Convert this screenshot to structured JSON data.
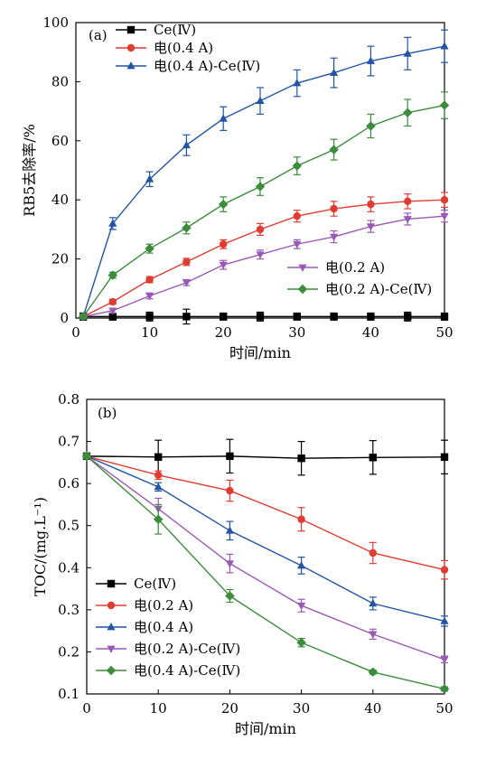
{
  "chart_data": [
    {
      "type": "line",
      "panel_label": "(a)",
      "xlabel": "时间/min",
      "ylabel": "RB5去除率/%",
      "xlim": [
        0,
        50
      ],
      "ylim": [
        0,
        100
      ],
      "xticks": [
        0,
        10,
        20,
        30,
        40,
        50
      ],
      "yticks": [
        0,
        20,
        40,
        60,
        80,
        100
      ],
      "grid": false,
      "legend": [
        {
          "position": "top-left",
          "series": [
            0,
            1,
            2
          ]
        },
        {
          "position": "bottom-right",
          "series": [
            3,
            4
          ]
        }
      ],
      "series": [
        {
          "name": "Ce(Ⅳ)",
          "color": "#000000",
          "marker": "square",
          "x": [
            1,
            5,
            10,
            15,
            20,
            25,
            30,
            35,
            40,
            45,
            50
          ],
          "y": [
            0.5,
            0.5,
            0.5,
            0.5,
            0.5,
            0.5,
            0.5,
            0.5,
            0.5,
            0.5,
            0.5
          ],
          "err": [
            1.2,
            1.2,
            1.5,
            2.5,
            1.2,
            1.5,
            1.2,
            1.2,
            1.2,
            1.5,
            1.2
          ]
        },
        {
          "name": "电(0.4 A)",
          "color": "#e03c31",
          "marker": "circle",
          "x": [
            1,
            5,
            10,
            15,
            20,
            25,
            30,
            35,
            40,
            45,
            50
          ],
          "y": [
            0.5,
            5.5,
            13,
            19,
            25,
            30,
            34.5,
            37,
            38.5,
            39.5,
            40
          ],
          "err": [
            0.8,
            0.8,
            1,
            1.2,
            1.5,
            2,
            2,
            2.5,
            2.5,
            2.5,
            2.5
          ]
        },
        {
          "name": "电(0.4 A)-Ce(Ⅳ)",
          "color": "#2255a4",
          "marker": "triangle-up",
          "x": [
            1,
            5,
            10,
            15,
            20,
            25,
            30,
            35,
            40,
            45,
            50
          ],
          "y": [
            0.5,
            32,
            47,
            58.5,
            67.5,
            73.5,
            79.5,
            83,
            87,
            89.5,
            92
          ],
          "err": [
            0.8,
            2,
            2.5,
            3.5,
            4,
            4.5,
            4.5,
            5,
            5,
            5.5,
            5.5
          ]
        },
        {
          "name": "电(0.2 A)",
          "color": "#9b59b6",
          "marker": "triangle-down",
          "x": [
            1,
            5,
            10,
            15,
            20,
            25,
            30,
            35,
            40,
            45,
            50
          ],
          "y": [
            0.5,
            2.5,
            7.5,
            12,
            18,
            21.5,
            25,
            27.5,
            31,
            33.5,
            34.5
          ],
          "err": [
            0.5,
            0.8,
            1,
            1,
            1.5,
            1.5,
            1.5,
            2,
            2,
            2,
            2
          ]
        },
        {
          "name": "电(0.2 A)-Ce(Ⅳ)",
          "color": "#3b8c3b",
          "marker": "diamond",
          "x": [
            1,
            5,
            10,
            15,
            20,
            25,
            30,
            35,
            40,
            45,
            50
          ],
          "y": [
            0.5,
            14.5,
            23.5,
            30.5,
            38.5,
            44.5,
            51.5,
            57,
            65,
            69.5,
            72
          ],
          "err": [
            0.8,
            1,
            1.5,
            2,
            2.5,
            3,
            3,
            3.5,
            4,
            4.5,
            4.5
          ]
        }
      ]
    },
    {
      "type": "line",
      "panel_label": "(b)",
      "xlabel": "时间/min",
      "ylabel": "TOC/(mg.L⁻¹)",
      "xlim": [
        0,
        50
      ],
      "ylim": [
        0.1,
        0.8
      ],
      "xticks": [
        0,
        10,
        20,
        30,
        40,
        50
      ],
      "yticks": [
        0.1,
        0.2,
        0.3,
        0.4,
        0.5,
        0.6,
        0.7,
        0.8
      ],
      "grid": false,
      "legend": [
        {
          "position": "bottom-left",
          "series": [
            0,
            1,
            2,
            3,
            4
          ]
        }
      ],
      "series": [
        {
          "name": "Ce(Ⅳ)",
          "color": "#000000",
          "marker": "square",
          "x": [
            0,
            10,
            20,
            30,
            40,
            50
          ],
          "y": [
            0.665,
            0.663,
            0.665,
            0.66,
            0.662,
            0.663
          ],
          "err": [
            0.005,
            0.04,
            0.04,
            0.04,
            0.04,
            0.04
          ]
        },
        {
          "name": "电(0.2 A)",
          "color": "#e03c31",
          "marker": "circle",
          "x": [
            0,
            10,
            20,
            30,
            40,
            50
          ],
          "y": [
            0.665,
            0.62,
            0.583,
            0.515,
            0.435,
            0.395
          ],
          "err": [
            0.005,
            0.01,
            0.025,
            0.028,
            0.025,
            0.022
          ]
        },
        {
          "name": "电(0.4 A)",
          "color": "#2255a4",
          "marker": "triangle-up",
          "x": [
            0,
            10,
            20,
            30,
            40,
            50
          ],
          "y": [
            0.665,
            0.592,
            0.488,
            0.405,
            0.315,
            0.273
          ],
          "err": [
            0.005,
            0.01,
            0.022,
            0.02,
            0.015,
            0.012
          ]
        },
        {
          "name": "电(0.2 A)-Ce(Ⅳ)",
          "color": "#9b59b6",
          "marker": "triangle-down",
          "x": [
            0,
            10,
            20,
            30,
            40,
            50
          ],
          "y": [
            0.665,
            0.54,
            0.41,
            0.31,
            0.242,
            0.182
          ],
          "err": [
            0.005,
            0.025,
            0.022,
            0.015,
            0.012,
            0.008
          ]
        },
        {
          "name": "电(0.4 A)-Ce(Ⅳ)",
          "color": "#3b8c3b",
          "marker": "diamond",
          "x": [
            0,
            10,
            20,
            30,
            40,
            50
          ],
          "y": [
            0.665,
            0.515,
            0.333,
            0.222,
            0.152,
            0.112
          ],
          "err": [
            0.005,
            0.035,
            0.015,
            0.01,
            0.005,
            0.005
          ]
        }
      ]
    }
  ]
}
